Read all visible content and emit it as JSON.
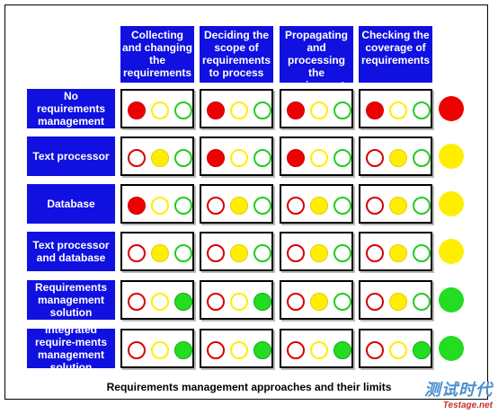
{
  "columns": [
    {
      "label": "Collecting and changing the requirements"
    },
    {
      "label": "Deciding the scope of requirements to process"
    },
    {
      "label": "Propagating and processing the requirements"
    },
    {
      "label": "Checking the coverage of requirements"
    }
  ],
  "rows": [
    {
      "label": "No requirements management",
      "cells": [
        "red",
        "red",
        "red",
        "red"
      ],
      "overall": "red"
    },
    {
      "label": "Text processor",
      "cells": [
        "yellow",
        "red",
        "red",
        "yellow"
      ],
      "overall": "yellow"
    },
    {
      "label": "Database",
      "cells": [
        "red",
        "yellow",
        "yellow",
        "yellow"
      ],
      "overall": "yellow"
    },
    {
      "label": "Text processor and database",
      "cells": [
        "yellow",
        "yellow",
        "yellow",
        "yellow"
      ],
      "overall": "yellow"
    },
    {
      "label": "Requirements management solution",
      "cells": [
        "green",
        "green",
        "yellow",
        "yellow"
      ],
      "overall": "green"
    },
    {
      "label": "Integrated require-ments management solution",
      "cells": [
        "green",
        "green",
        "green",
        "green"
      ],
      "overall": "green"
    }
  ],
  "colors": {
    "red": "#ee0000",
    "yellow": "#ffee00",
    "green": "#22dd22",
    "header_bg": "#1010e0"
  },
  "caption": "Requirements management approaches and their limits",
  "watermark": {
    "cn": "测试时代",
    "url": "Testage.net"
  }
}
